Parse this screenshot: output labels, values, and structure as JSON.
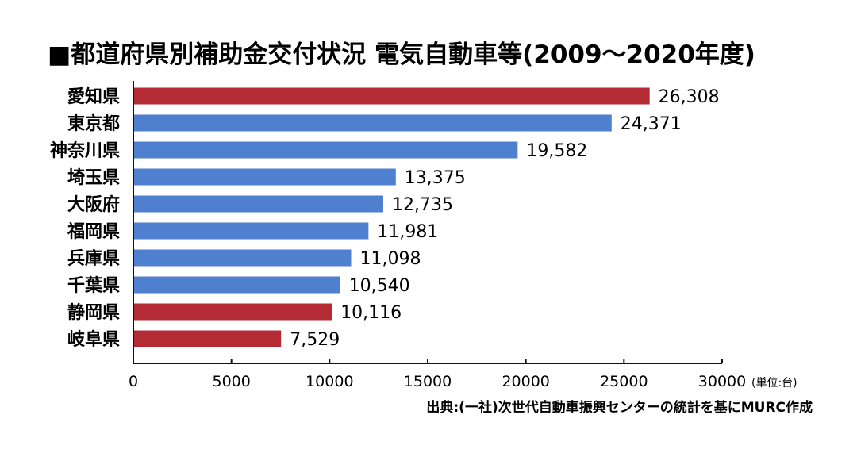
{
  "chart_data": {
    "type": "bar",
    "orientation": "horizontal",
    "title": "■都道府県別補助金交付状況 電気自動車等(2009〜2020年度)",
    "categories": [
      "愛知県",
      "東京都",
      "神奈川県",
      "埼玉県",
      "大阪府",
      "福岡県",
      "兵庫県",
      "千葉県",
      "静岡県",
      "岐阜県"
    ],
    "values": [
      26308,
      24371,
      19582,
      13375,
      12735,
      11981,
      11098,
      10540,
      10116,
      7529
    ],
    "value_labels": [
      "26,308",
      "24,371",
      "19,582",
      "13,375",
      "12,735",
      "11,981",
      "11,098",
      "10,540",
      "10,116",
      "7,529"
    ],
    "highlighted": [
      true,
      false,
      false,
      false,
      false,
      false,
      false,
      false,
      true,
      true
    ],
    "xlim": [
      0,
      30000
    ],
    "xticks": [
      0,
      5000,
      10000,
      15000,
      20000,
      25000,
      30000
    ],
    "xtick_labels": [
      "0",
      "5000",
      "10000",
      "15000",
      "20000",
      "25000",
      "30000"
    ],
    "unit_label": "(単位:台)",
    "source": "出典:(一社)次世代自動車振興センターの統計を基にMURC作成",
    "grid": false,
    "legend": "none",
    "colors": {
      "default_bar": "#4f7fcf",
      "highlight_bar": "#b42a35",
      "axis": "#111111",
      "text": "#111111"
    }
  }
}
